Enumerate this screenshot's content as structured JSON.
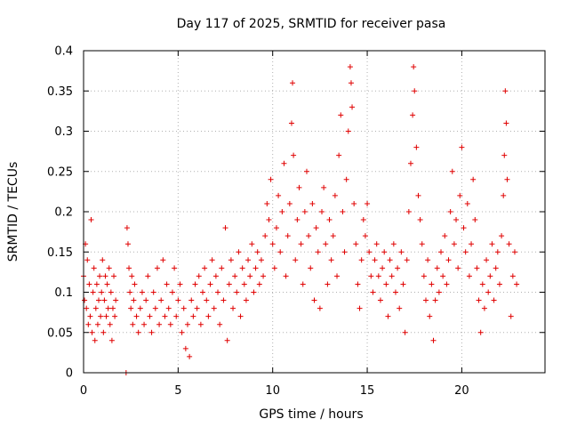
{
  "chart_data": {
    "type": "scatter",
    "title": "Day 117 of 2025, SRMTID for receiver pasa",
    "xlabel": "GPS time / hours",
    "ylabel": "SRMTID / TECUs",
    "xlim": [
      0,
      24.4
    ],
    "ylim": [
      0,
      0.4
    ],
    "x_ticks": [
      0,
      5,
      10,
      15,
      20
    ],
    "x_tick_labels": [
      "0",
      "5",
      "10",
      "15",
      "20"
    ],
    "y_ticks": [
      0,
      0.05,
      0.1,
      0.15,
      0.2,
      0.25,
      0.3,
      0.35,
      0.4
    ],
    "y_tick_labels": [
      "0",
      "0.05",
      "0.1",
      "0.15",
      "0.2",
      "0.25",
      "0.3",
      "0.35",
      "0.4"
    ],
    "grid": true,
    "marker": "plus",
    "color": "#e00000",
    "series": [
      {
        "name": "SRMTID",
        "points": [
          [
            0.0,
            0.12
          ],
          [
            0.05,
            0.09
          ],
          [
            0.1,
            0.16
          ],
          [
            0.15,
            0.08
          ],
          [
            0.2,
            0.14
          ],
          [
            0.25,
            0.06
          ],
          [
            0.3,
            0.11
          ],
          [
            0.35,
            0.07
          ],
          [
            0.4,
            0.19
          ],
          [
            0.45,
            0.05
          ],
          [
            0.5,
            0.1
          ],
          [
            0.55,
            0.13
          ],
          [
            0.6,
            0.04
          ],
          [
            0.65,
            0.08
          ],
          [
            0.7,
            0.11
          ],
          [
            0.75,
            0.06
          ],
          [
            0.8,
            0.09
          ],
          [
            0.85,
            0.12
          ],
          [
            0.9,
            0.07
          ],
          [
            0.95,
            0.1
          ],
          [
            1.0,
            0.14
          ],
          [
            1.05,
            0.05
          ],
          [
            1.1,
            0.09
          ],
          [
            1.15,
            0.12
          ],
          [
            1.2,
            0.07
          ],
          [
            1.25,
            0.11
          ],
          [
            1.3,
            0.08
          ],
          [
            1.35,
            0.13
          ],
          [
            1.4,
            0.06
          ],
          [
            1.45,
            0.1
          ],
          [
            1.5,
            0.04
          ],
          [
            1.55,
            0.08
          ],
          [
            1.6,
            0.12
          ],
          [
            1.65,
            0.07
          ],
          [
            1.7,
            0.09
          ],
          [
            2.25,
            0.0
          ],
          [
            2.3,
            0.18
          ],
          [
            2.35,
            0.16
          ],
          [
            2.4,
            0.13
          ],
          [
            2.45,
            0.1
          ],
          [
            2.5,
            0.08
          ],
          [
            2.55,
            0.12
          ],
          [
            2.6,
            0.06
          ],
          [
            2.65,
            0.09
          ],
          [
            2.7,
            0.11
          ],
          [
            2.8,
            0.07
          ],
          [
            2.9,
            0.05
          ],
          [
            3.0,
            0.08
          ],
          [
            3.1,
            0.1
          ],
          [
            3.2,
            0.06
          ],
          [
            3.3,
            0.09
          ],
          [
            3.4,
            0.12
          ],
          [
            3.5,
            0.07
          ],
          [
            3.6,
            0.05
          ],
          [
            3.7,
            0.1
          ],
          [
            3.8,
            0.08
          ],
          [
            3.9,
            0.13
          ],
          [
            4.0,
            0.06
          ],
          [
            4.1,
            0.09
          ],
          [
            4.2,
            0.14
          ],
          [
            4.3,
            0.07
          ],
          [
            4.4,
            0.11
          ],
          [
            4.5,
            0.08
          ],
          [
            4.6,
            0.06
          ],
          [
            4.7,
            0.1
          ],
          [
            4.8,
            0.13
          ],
          [
            4.9,
            0.07
          ],
          [
            5.0,
            0.09
          ],
          [
            5.1,
            0.11
          ],
          [
            5.2,
            0.05
          ],
          [
            5.3,
            0.08
          ],
          [
            5.4,
            0.03
          ],
          [
            5.5,
            0.06
          ],
          [
            5.6,
            0.02
          ],
          [
            5.7,
            0.09
          ],
          [
            5.8,
            0.07
          ],
          [
            5.9,
            0.11
          ],
          [
            6.0,
            0.08
          ],
          [
            6.1,
            0.12
          ],
          [
            6.2,
            0.06
          ],
          [
            6.3,
            0.1
          ],
          [
            6.4,
            0.13
          ],
          [
            6.5,
            0.09
          ],
          [
            6.6,
            0.07
          ],
          [
            6.7,
            0.11
          ],
          [
            6.8,
            0.14
          ],
          [
            6.9,
            0.08
          ],
          [
            7.0,
            0.12
          ],
          [
            7.1,
            0.1
          ],
          [
            7.2,
            0.06
          ],
          [
            7.3,
            0.13
          ],
          [
            7.4,
            0.09
          ],
          [
            7.5,
            0.18
          ],
          [
            7.6,
            0.04
          ],
          [
            7.7,
            0.11
          ],
          [
            7.8,
            0.14
          ],
          [
            7.9,
            0.08
          ],
          [
            8.0,
            0.12
          ],
          [
            8.1,
            0.1
          ],
          [
            8.2,
            0.15
          ],
          [
            8.3,
            0.07
          ],
          [
            8.4,
            0.13
          ],
          [
            8.5,
            0.11
          ],
          [
            8.6,
            0.09
          ],
          [
            8.7,
            0.14
          ],
          [
            8.8,
            0.12
          ],
          [
            8.9,
            0.16
          ],
          [
            9.0,
            0.1
          ],
          [
            9.1,
            0.13
          ],
          [
            9.2,
            0.15
          ],
          [
            9.3,
            0.11
          ],
          [
            9.4,
            0.14
          ],
          [
            9.5,
            0.12
          ],
          [
            9.6,
            0.17
          ],
          [
            9.7,
            0.21
          ],
          [
            9.8,
            0.19
          ],
          [
            9.9,
            0.24
          ],
          [
            10.0,
            0.16
          ],
          [
            10.1,
            0.13
          ],
          [
            10.2,
            0.18
          ],
          [
            10.3,
            0.22
          ],
          [
            10.4,
            0.15
          ],
          [
            10.5,
            0.2
          ],
          [
            10.6,
            0.26
          ],
          [
            10.7,
            0.12
          ],
          [
            10.8,
            0.17
          ],
          [
            10.9,
            0.21
          ],
          [
            11.0,
            0.31
          ],
          [
            11.05,
            0.36
          ],
          [
            11.1,
            0.27
          ],
          [
            11.2,
            0.14
          ],
          [
            11.3,
            0.19
          ],
          [
            11.4,
            0.23
          ],
          [
            11.5,
            0.16
          ],
          [
            11.6,
            0.11
          ],
          [
            11.7,
            0.2
          ],
          [
            11.8,
            0.25
          ],
          [
            11.9,
            0.17
          ],
          [
            12.0,
            0.13
          ],
          [
            12.1,
            0.21
          ],
          [
            12.2,
            0.09
          ],
          [
            12.3,
            0.18
          ],
          [
            12.4,
            0.15
          ],
          [
            12.5,
            0.08
          ],
          [
            12.6,
            0.2
          ],
          [
            12.7,
            0.23
          ],
          [
            12.8,
            0.16
          ],
          [
            12.9,
            0.11
          ],
          [
            13.0,
            0.19
          ],
          [
            13.1,
            0.14
          ],
          [
            13.2,
            0.17
          ],
          [
            13.3,
            0.22
          ],
          [
            13.4,
            0.12
          ],
          [
            13.5,
            0.27
          ],
          [
            13.6,
            0.32
          ],
          [
            13.7,
            0.2
          ],
          [
            13.8,
            0.15
          ],
          [
            13.9,
            0.24
          ],
          [
            14.0,
            0.3
          ],
          [
            14.1,
            0.38
          ],
          [
            14.15,
            0.36
          ],
          [
            14.2,
            0.33
          ],
          [
            14.3,
            0.21
          ],
          [
            14.4,
            0.16
          ],
          [
            14.5,
            0.11
          ],
          [
            14.6,
            0.08
          ],
          [
            14.7,
            0.14
          ],
          [
            14.8,
            0.19
          ],
          [
            14.9,
            0.17
          ],
          [
            15.0,
            0.21
          ],
          [
            15.1,
            0.15
          ],
          [
            15.2,
            0.12
          ],
          [
            15.3,
            0.1
          ],
          [
            15.4,
            0.14
          ],
          [
            15.5,
            0.16
          ],
          [
            15.6,
            0.12
          ],
          [
            15.7,
            0.09
          ],
          [
            15.8,
            0.13
          ],
          [
            15.9,
            0.15
          ],
          [
            16.0,
            0.11
          ],
          [
            16.1,
            0.07
          ],
          [
            16.2,
            0.14
          ],
          [
            16.3,
            0.12
          ],
          [
            16.4,
            0.16
          ],
          [
            16.5,
            0.1
          ],
          [
            16.6,
            0.13
          ],
          [
            16.7,
            0.08
          ],
          [
            16.8,
            0.15
          ],
          [
            16.9,
            0.11
          ],
          [
            17.0,
            0.05
          ],
          [
            17.1,
            0.14
          ],
          [
            17.2,
            0.2
          ],
          [
            17.3,
            0.26
          ],
          [
            17.4,
            0.32
          ],
          [
            17.45,
            0.38
          ],
          [
            17.5,
            0.35
          ],
          [
            17.6,
            0.28
          ],
          [
            17.7,
            0.22
          ],
          [
            17.8,
            0.19
          ],
          [
            17.9,
            0.16
          ],
          [
            18.0,
            0.12
          ],
          [
            18.1,
            0.09
          ],
          [
            18.2,
            0.14
          ],
          [
            18.3,
            0.07
          ],
          [
            18.4,
            0.11
          ],
          [
            18.5,
            0.04
          ],
          [
            18.6,
            0.09
          ],
          [
            18.7,
            0.13
          ],
          [
            18.8,
            0.1
          ],
          [
            18.9,
            0.15
          ],
          [
            19.0,
            0.12
          ],
          [
            19.1,
            0.17
          ],
          [
            19.2,
            0.11
          ],
          [
            19.3,
            0.14
          ],
          [
            19.4,
            0.2
          ],
          [
            19.5,
            0.25
          ],
          [
            19.6,
            0.16
          ],
          [
            19.7,
            0.19
          ],
          [
            19.8,
            0.13
          ],
          [
            19.9,
            0.22
          ],
          [
            20.0,
            0.28
          ],
          [
            20.1,
            0.18
          ],
          [
            20.2,
            0.15
          ],
          [
            20.3,
            0.21
          ],
          [
            20.4,
            0.12
          ],
          [
            20.5,
            0.16
          ],
          [
            20.6,
            0.24
          ],
          [
            20.7,
            0.19
          ],
          [
            20.8,
            0.13
          ],
          [
            20.9,
            0.09
          ],
          [
            21.0,
            0.05
          ],
          [
            21.1,
            0.11
          ],
          [
            21.2,
            0.08
          ],
          [
            21.3,
            0.14
          ],
          [
            21.4,
            0.1
          ],
          [
            21.5,
            0.12
          ],
          [
            21.6,
            0.16
          ],
          [
            21.7,
            0.09
          ],
          [
            21.8,
            0.13
          ],
          [
            21.9,
            0.15
          ],
          [
            22.0,
            0.11
          ],
          [
            22.1,
            0.17
          ],
          [
            22.2,
            0.22
          ],
          [
            22.25,
            0.27
          ],
          [
            22.3,
            0.35
          ],
          [
            22.35,
            0.31
          ],
          [
            22.4,
            0.24
          ],
          [
            22.5,
            0.16
          ],
          [
            22.6,
            0.07
          ],
          [
            22.7,
            0.12
          ],
          [
            22.8,
            0.15
          ],
          [
            22.9,
            0.11
          ]
        ]
      }
    ]
  }
}
